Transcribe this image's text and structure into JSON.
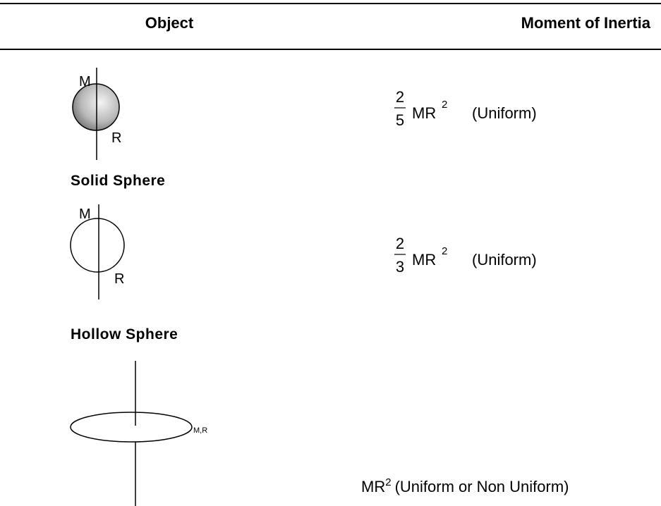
{
  "header": {
    "columns": [
      "Object",
      "Moment of Inertia"
    ]
  },
  "rows": [
    {
      "name": "Solid Sphere",
      "mass_label": "M",
      "radius_label": "R",
      "formula": {
        "numerator": "2",
        "denominator": "5",
        "base": "MR",
        "exponent": "2",
        "note": "(Uniform)"
      }
    },
    {
      "name": "Hollow Sphere",
      "mass_label": "M",
      "radius_label": "R",
      "formula": {
        "numerator": "2",
        "denominator": "3",
        "base": "MR",
        "exponent": "2",
        "note": "(Uniform)"
      }
    },
    {
      "mass_radius_label": "M,R",
      "formula": {
        "base": "MR",
        "exponent": "2",
        "note": "(Uniform or Non Uniform)"
      }
    }
  ]
}
